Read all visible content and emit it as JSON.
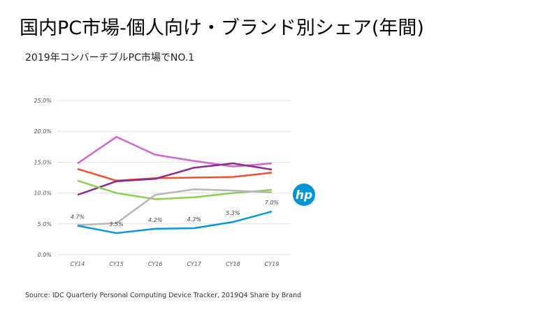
{
  "title": "国内PC市場-個人向け・ブランド別シェア(年間)",
  "subtitle": "2019年コンバーチブルPC市場でNO.1",
  "source": "Source: IDC Quarterly Personal Computing Device Tracker, 2019Q4  Share by Brand",
  "logo": {
    "text": "hp",
    "color": "#0096d6"
  },
  "chart_data": {
    "type": "line",
    "categories": [
      "CY14",
      "CY15",
      "CY16",
      "CY17",
      "CY18",
      "CY19"
    ],
    "ylim": [
      0,
      25
    ],
    "yticks": [
      "0.0%",
      "5.0%",
      "10.0%",
      "15.0%",
      "20.0%",
      "25.0%"
    ],
    "grid": true,
    "series": [
      {
        "color": "#d166d0",
        "values": [
          14.8,
          19.1,
          16.2,
          15.2,
          14.3,
          14.8
        ]
      },
      {
        "color": "#f0522f",
        "values": [
          13.9,
          12.0,
          12.4,
          12.5,
          12.6,
          13.3
        ]
      },
      {
        "color": "#8b2a8a",
        "values": [
          9.7,
          11.9,
          12.3,
          14.1,
          14.8,
          13.8
        ]
      },
      {
        "color": "#8ccf4e",
        "values": [
          12.0,
          10.0,
          9.0,
          9.3,
          10.0,
          10.5
        ]
      },
      {
        "color": "#b8b6b6",
        "values": [
          4.8,
          5.1,
          9.7,
          10.6,
          10.4,
          10.1
        ]
      },
      {
        "color": "#0a96d8",
        "values": [
          4.7,
          3.5,
          4.2,
          4.3,
          5.3,
          7.0
        ],
        "labels": [
          "4.7%",
          "3.5%",
          "4.2%",
          "4.3%",
          "5.3%",
          "7.0%"
        ]
      }
    ]
  }
}
